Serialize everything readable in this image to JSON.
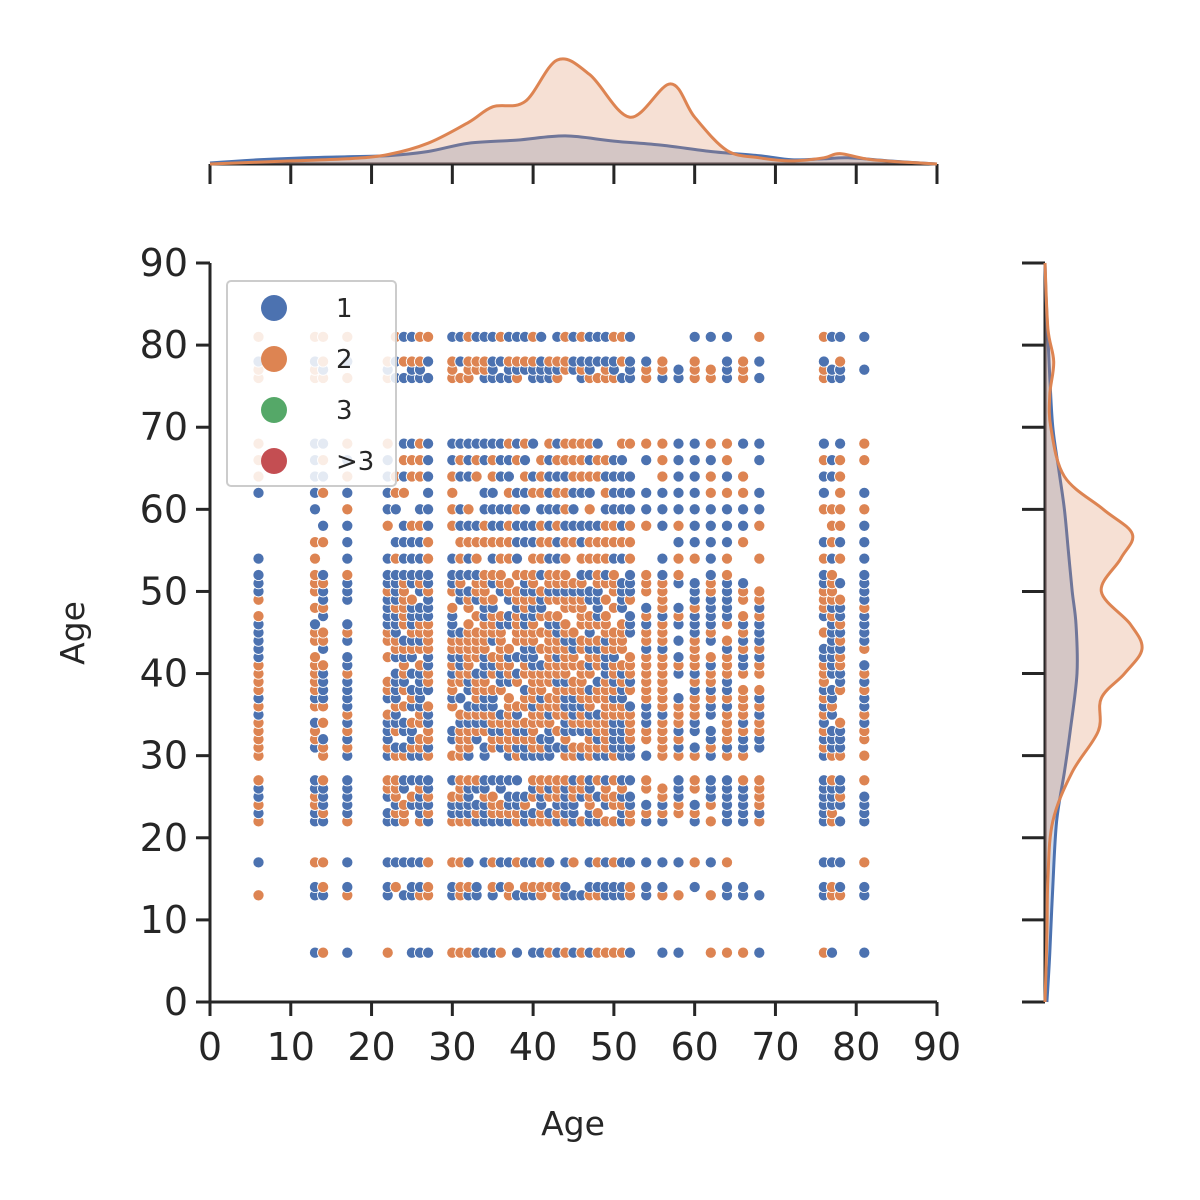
{
  "chart_data": {
    "type": "scatter",
    "kind": "jointplot with marginal KDE",
    "xlabel": "Age",
    "ylabel": "Age",
    "xlim": [
      0,
      90
    ],
    "ylim": [
      0,
      90
    ],
    "xticks": [
      "0",
      "10",
      "20",
      "30",
      "40",
      "50",
      "60",
      "70",
      "80",
      "90"
    ],
    "yticks": [
      "0",
      "10",
      "20",
      "30",
      "40",
      "50",
      "60",
      "70",
      "80",
      "90"
    ],
    "grid": false,
    "legend": {
      "placement": "top-left",
      "entries": [
        {
          "label": "1",
          "color": "#4c72b0"
        },
        {
          "label": "2",
          "color": "#dd8452"
        },
        {
          "label": "3",
          "color": "#55a868"
        },
        {
          "label": ">3",
          "color": "#c44e52"
        }
      ]
    },
    "age_values": [
      6,
      13,
      14,
      17,
      22,
      23,
      24,
      25,
      26,
      27,
      30,
      31,
      32,
      33,
      34,
      35,
      36,
      37,
      38,
      39,
      40,
      41,
      42,
      43,
      44,
      45,
      46,
      47,
      48,
      49,
      50,
      51,
      52,
      54,
      56,
      58,
      60,
      62,
      64,
      66,
      68,
      76,
      77,
      78,
      81
    ],
    "series": [
      {
        "name": "1",
        "color": "#4c72b0",
        "x_kde": [
          [
            0,
            0.01
          ],
          [
            6,
            0.04
          ],
          [
            12,
            0.06
          ],
          [
            17,
            0.07
          ],
          [
            22,
            0.08
          ],
          [
            27,
            0.12
          ],
          [
            32,
            0.2
          ],
          [
            38,
            0.23
          ],
          [
            44,
            0.27
          ],
          [
            50,
            0.22
          ],
          [
            56,
            0.18
          ],
          [
            62,
            0.12
          ],
          [
            68,
            0.08
          ],
          [
            72,
            0.04
          ],
          [
            76,
            0.05
          ],
          [
            79,
            0.06
          ],
          [
            84,
            0.03
          ],
          [
            90,
            0.0
          ]
        ],
        "y_kde": [
          [
            0,
            0.02
          ],
          [
            6,
            0.05
          ],
          [
            14,
            0.08
          ],
          [
            22,
            0.12
          ],
          [
            28,
            0.2
          ],
          [
            33,
            0.26
          ],
          [
            40,
            0.33
          ],
          [
            46,
            0.32
          ],
          [
            50,
            0.28
          ],
          [
            55,
            0.24
          ],
          [
            60,
            0.2
          ],
          [
            65,
            0.14
          ],
          [
            70,
            0.08
          ],
          [
            76,
            0.05
          ],
          [
            81,
            0.03
          ],
          [
            86,
            0.01
          ],
          [
            90,
            0.0
          ]
        ]
      },
      {
        "name": "2",
        "color": "#dd8452",
        "x_kde": [
          [
            0,
            0.0
          ],
          [
            10,
            0.03
          ],
          [
            17,
            0.05
          ],
          [
            22,
            0.09
          ],
          [
            27,
            0.2
          ],
          [
            32,
            0.4
          ],
          [
            35,
            0.55
          ],
          [
            39,
            0.6
          ],
          [
            43,
            1.0
          ],
          [
            47,
            0.86
          ],
          [
            52,
            0.45
          ],
          [
            57,
            0.77
          ],
          [
            60,
            0.45
          ],
          [
            64,
            0.13
          ],
          [
            68,
            0.06
          ],
          [
            72,
            0.03
          ],
          [
            76,
            0.06
          ],
          [
            78,
            0.1
          ],
          [
            82,
            0.04
          ],
          [
            90,
            0.0
          ]
        ],
        "y_kde": [
          [
            0,
            0.0
          ],
          [
            8,
            0.02
          ],
          [
            15,
            0.03
          ],
          [
            22,
            0.08
          ],
          [
            28,
            0.28
          ],
          [
            33,
            0.55
          ],
          [
            37,
            0.58
          ],
          [
            40,
            0.82
          ],
          [
            43,
            1.0
          ],
          [
            46,
            0.88
          ],
          [
            50,
            0.58
          ],
          [
            54,
            0.78
          ],
          [
            57,
            0.9
          ],
          [
            60,
            0.6
          ],
          [
            64,
            0.2
          ],
          [
            70,
            0.06
          ],
          [
            74,
            0.05
          ],
          [
            78,
            0.09
          ],
          [
            82,
            0.03
          ],
          [
            90,
            0.0
          ]
        ]
      }
    ]
  }
}
